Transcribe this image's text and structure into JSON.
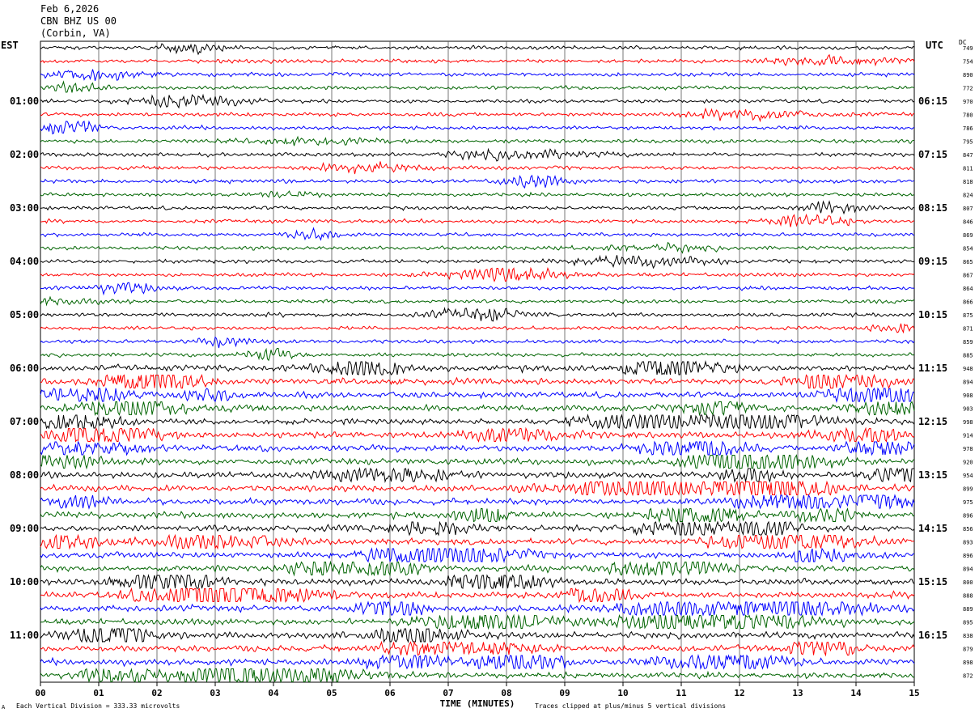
{
  "header": {
    "date": "Feb 6,2026",
    "station": "CBN BHZ US 00",
    "location": "(Corbin, VA)"
  },
  "tz": {
    "left": "EST",
    "right": "UTC",
    "dc": "DC"
  },
  "footer": {
    "division_note": "Each Vertical Division =  333.33 microvolts",
    "clip_note": "Traces clipped at plus/minus 5 vertical divisions",
    "corner_mark": "A"
  },
  "colors": {
    "cycle": [
      "#000000",
      "#ff0000",
      "#0000ff",
      "#006400"
    ],
    "grid": "#000000"
  },
  "chart_data": {
    "type": "line",
    "xlabel": "TIME (MINUTES)",
    "x_ticks": [
      "00",
      "01",
      "02",
      "03",
      "04",
      "05",
      "06",
      "07",
      "08",
      "09",
      "10",
      "11",
      "12",
      "13",
      "14",
      "15"
    ],
    "xlim": [
      0,
      15
    ],
    "left_hour_labels": [
      "01:00",
      "02:00",
      "03:00",
      "04:00",
      "05:00",
      "06:00",
      "07:00",
      "08:00",
      "09:00",
      "10:00",
      "11:00"
    ],
    "right_hour_labels": [
      "06:15",
      "07:15",
      "08:15",
      "09:15",
      "10:15",
      "11:15",
      "12:15",
      "13:15",
      "14:15",
      "15:15",
      "16:15"
    ],
    "dc_offsets": [
      "749",
      "754",
      "890",
      "772",
      "970",
      "780",
      "786",
      "795",
      "847",
      "811",
      "818",
      "824",
      "807",
      "846",
      "869",
      "854",
      "865",
      "867",
      "864",
      "866",
      "875",
      "871",
      "859",
      "885",
      "948",
      "894",
      "908",
      "903",
      "998",
      "914",
      "978",
      "920",
      "954",
      "899",
      "975",
      "896",
      "856",
      "893",
      "896",
      "894",
      "800",
      "888",
      "889",
      "895",
      "838",
      "879",
      "898",
      "872"
    ],
    "trace_count": 48,
    "traces_per_hour": 4,
    "minutes_per_trace": 15
  }
}
